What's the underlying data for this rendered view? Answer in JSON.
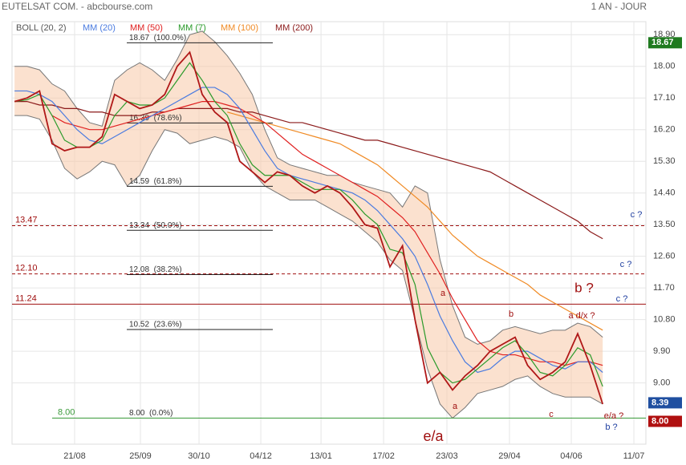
{
  "chart_data": {
    "type": "stock",
    "title": "EUTELSAT COM. - abcbourse.com",
    "period": "1 AN - JOUR",
    "indicators": [
      "BOLL (20, 2)",
      "MM (20)",
      "MM (50)",
      "MM (7)",
      "MM (100)",
      "MM (200)"
    ],
    "xlim": [
      -0.2,
      50.45
    ],
    "xticks": [
      {
        "value": 4.8,
        "label": "21/08"
      },
      {
        "value": 10.06,
        "label": "25/09"
      },
      {
        "value": 14.74,
        "label": "30/10"
      },
      {
        "value": 19.68,
        "label": "04/12"
      },
      {
        "value": 24.49,
        "label": "13/01"
      },
      {
        "value": 29.49,
        "label": "17/02"
      },
      {
        "value": 34.55,
        "label": "23/03"
      },
      {
        "value": 39.55,
        "label": "29/04"
      },
      {
        "value": 44.49,
        "label": "04/06"
      },
      {
        "value": 49.49,
        "label": "11/07"
      }
    ],
    "ylim": [
      7.26,
      19.27
    ],
    "yticks": [
      {
        "value": 18.9,
        "label": "18.90"
      },
      {
        "value": 18,
        "label": "18.00"
      },
      {
        "value": 17.1,
        "label": "17.10"
      },
      {
        "value": 16.2,
        "label": "16.20"
      },
      {
        "value": 15.3,
        "label": "15.30"
      },
      {
        "value": 14.4,
        "label": "14.40"
      },
      {
        "value": 13.5,
        "label": "13.50"
      },
      {
        "value": 12.6,
        "label": "12.60"
      },
      {
        "value": 11.7,
        "label": "11.70"
      },
      {
        "value": 10.8,
        "label": "10.80"
      },
      {
        "value": 9.9,
        "label": "9.90"
      },
      {
        "value": 9,
        "label": "9.00"
      }
    ],
    "grid": true,
    "bollinger": {
      "color": "#f7c9a8",
      "upper": [
        18.0,
        18.0,
        17.9,
        17.5,
        17.3,
        16.8,
        16.4,
        16.3,
        17.6,
        17.9,
        18.1,
        17.9,
        17.6,
        18.2,
        18.9,
        19.0,
        18.7,
        18.3,
        17.8,
        17.2,
        16.2,
        15.4,
        15.2,
        15.1,
        15.0,
        14.9,
        14.9,
        14.7,
        14.6,
        14.5,
        14.4,
        14.0,
        14.6,
        14.4,
        12.5,
        11.2,
        10.3,
        10.1,
        10.2,
        10.5,
        10.6,
        10.5,
        10.4,
        10.5,
        10.5,
        10.7,
        10.6,
        10.3
      ],
      "lower": [
        16.6,
        16.6,
        16.5,
        15.9,
        15.1,
        14.8,
        15.0,
        15.3,
        15.2,
        14.6,
        14.9,
        15.6,
        16.2,
        16.1,
        15.8,
        15.9,
        16.0,
        15.9,
        15.7,
        15.0,
        14.6,
        14.4,
        14.2,
        14.2,
        14.2,
        14.0,
        13.8,
        13.6,
        13.3,
        13.0,
        12.5,
        12.2,
        10.8,
        9.4,
        8.4,
        8.0,
        8.3,
        8.7,
        8.8,
        8.9,
        9.1,
        9.2,
        8.9,
        8.7,
        8.6,
        8.6,
        8.6,
        8.4
      ]
    },
    "series": [
      {
        "name": "MM (200)",
        "color": "#8b1a1a",
        "values": [
          17.0,
          17.0,
          16.9,
          16.9,
          16.8,
          16.8,
          16.7,
          16.7,
          16.6,
          16.6,
          16.6,
          16.7,
          16.7,
          16.8,
          16.8,
          16.8,
          16.8,
          16.8,
          16.7,
          16.7,
          16.6,
          16.5,
          16.4,
          16.4,
          16.3,
          16.2,
          16.1,
          16.0,
          15.9,
          15.9,
          15.8,
          15.7,
          15.6,
          15.5,
          15.4,
          15.3,
          15.2,
          15.1,
          15.0,
          14.8,
          14.6,
          14.4,
          14.2,
          14.0,
          13.8,
          13.6,
          13.3,
          13.1
        ]
      },
      {
        "name": "MM (100)",
        "color": "#f08a24",
        "values": [
          null,
          null,
          null,
          null,
          null,
          null,
          null,
          null,
          null,
          null,
          null,
          null,
          null,
          null,
          null,
          null,
          null,
          16.7,
          16.6,
          16.5,
          16.4,
          16.3,
          16.2,
          16.1,
          16.0,
          15.9,
          15.8,
          15.6,
          15.4,
          15.2,
          14.9,
          14.6,
          14.3,
          14.0,
          13.6,
          13.2,
          12.9,
          12.6,
          12.4,
          12.2,
          12.0,
          11.8,
          11.5,
          11.3,
          11.1,
          10.9,
          10.7,
          10.5
        ]
      },
      {
        "name": "MM (50)",
        "color": "#e02020",
        "values": [
          null,
          null,
          null,
          16.6,
          16.4,
          16.3,
          16.2,
          16.2,
          16.3,
          16.4,
          16.5,
          16.6,
          16.7,
          16.8,
          16.9,
          17.0,
          17.0,
          16.9,
          16.8,
          16.6,
          16.4,
          16.1,
          15.8,
          15.5,
          15.3,
          15.1,
          14.9,
          14.7,
          14.5,
          14.3,
          14.0,
          13.7,
          13.3,
          12.7,
          12.1,
          11.4,
          10.8,
          10.2,
          9.9,
          9.8,
          9.8,
          9.7,
          9.6,
          9.6,
          9.5,
          9.6,
          9.6,
          9.5
        ]
      },
      {
        "name": "MM (20)",
        "color": "#4a7be0",
        "values": [
          17.3,
          17.3,
          17.2,
          17.0,
          16.6,
          16.2,
          15.9,
          15.8,
          16.0,
          16.2,
          16.4,
          16.6,
          16.8,
          17.0,
          17.2,
          17.4,
          17.4,
          17.2,
          16.8,
          16.2,
          15.6,
          15.1,
          14.9,
          14.8,
          14.7,
          14.6,
          14.5,
          14.4,
          14.2,
          13.9,
          13.5,
          13.1,
          12.6,
          11.8,
          10.9,
          10.2,
          9.6,
          9.3,
          9.4,
          9.7,
          9.9,
          9.9,
          9.7,
          9.5,
          9.4,
          9.6,
          9.6,
          9.3
        ]
      },
      {
        "name": "MM (7)",
        "color": "#2a9a2a",
        "values": [
          17.0,
          17.05,
          17.2,
          16.6,
          15.9,
          15.7,
          15.7,
          15.9,
          16.6,
          17.0,
          16.9,
          16.9,
          17.1,
          17.6,
          18.1,
          17.6,
          17.0,
          16.6,
          15.8,
          15.2,
          14.9,
          14.9,
          14.9,
          14.7,
          14.5,
          14.5,
          14.5,
          14.2,
          13.8,
          13.5,
          12.8,
          12.7,
          11.8,
          10.0,
          9.3,
          9.0,
          9.1,
          9.4,
          9.7,
          10.0,
          10.2,
          9.8,
          9.3,
          9.2,
          9.5,
          10.0,
          9.8,
          8.9
        ]
      },
      {
        "name": "Cours",
        "color": "#b01818",
        "values": [
          17.0,
          17.1,
          17.3,
          15.8,
          15.6,
          15.7,
          15.7,
          16.0,
          17.2,
          17.0,
          16.8,
          16.9,
          17.2,
          18.0,
          18.4,
          17.2,
          16.7,
          16.4,
          15.3,
          15.0,
          14.7,
          15.0,
          14.9,
          14.6,
          14.4,
          14.6,
          14.4,
          14.0,
          13.5,
          13.4,
          12.3,
          12.9,
          10.8,
          9.0,
          9.3,
          8.8,
          9.2,
          9.5,
          9.9,
          10.1,
          10.3,
          9.5,
          9.1,
          9.3,
          9.6,
          10.4,
          9.5,
          8.4
        ]
      }
    ],
    "fibonacci": [
      {
        "value": 18.67,
        "label": "18.67  (100.0%)"
      },
      {
        "value": 16.39,
        "label": "16.39  (78.6%)"
      },
      {
        "value": 14.59,
        "label": "14.59  (61.8%)"
      },
      {
        "value": 13.34,
        "label": "13.34  (50.0%)"
      },
      {
        "value": 12.08,
        "label": "12.08  (38.2%)"
      },
      {
        "value": 10.52,
        "label": "10.52  (23.6%)"
      },
      {
        "value": 8,
        "label": "8.00  (0.0%)"
      }
    ],
    "levels": [
      {
        "value": 13.47,
        "label": "13.47",
        "color": "#a01010",
        "dashed": true
      },
      {
        "value": 12.1,
        "label": "12.10",
        "color": "#a01010",
        "dashed": true
      },
      {
        "value": 11.24,
        "label": "11.24",
        "color": "#a01010",
        "dashed": false
      },
      {
        "value": 8,
        "label": "8.00",
        "color": "#3a9a3a",
        "dashed": false
      }
    ],
    "price_tags": [
      {
        "value": 18.67,
        "label": "18.67",
        "color": "#1f7a1f"
      },
      {
        "value": 8.39,
        "label": "8.39",
        "color": "#1f4fa0"
      },
      {
        "value": 8,
        "label": "8.00",
        "color": "#b01010"
      }
    ],
    "annotations": [
      "e/a",
      "a",
      "a",
      "b",
      "c",
      "a d/x ?",
      "b ?",
      "c ?",
      "c ?",
      "c ?",
      "e/a ?",
      "b ?"
    ]
  }
}
